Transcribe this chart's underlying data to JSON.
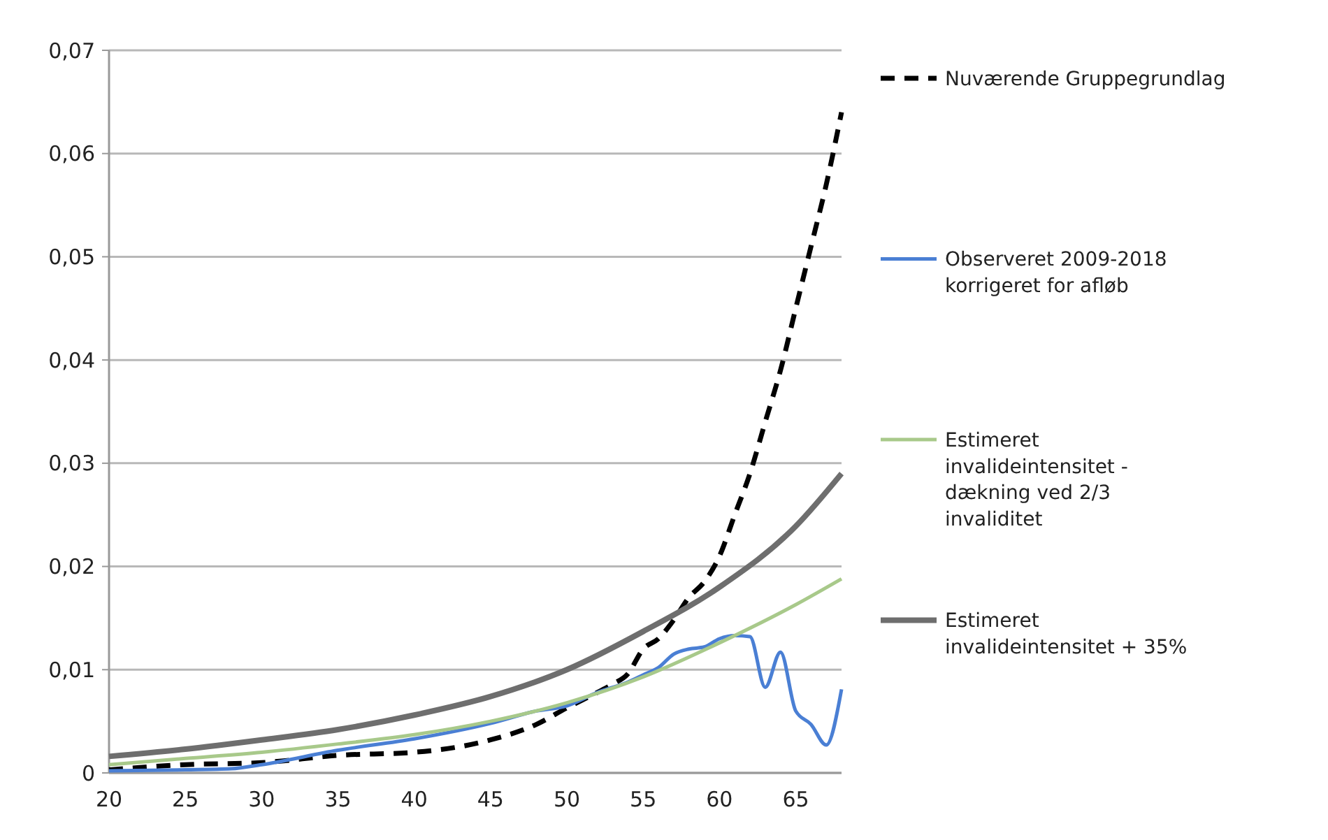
{
  "chart_data": {
    "type": "line",
    "xlim": [
      20,
      68
    ],
    "xticks": [
      20,
      25,
      30,
      35,
      40,
      45,
      50,
      55,
      60,
      65
    ],
    "ylim": [
      0,
      0.07
    ],
    "yticks": [
      0,
      {
        "value": 0.01,
        "label": "0,01"
      },
      {
        "value": 0.02,
        "label": "0,02"
      },
      {
        "value": 0.03,
        "label": "0,03"
      },
      {
        "value": 0.04,
        "label": "0,04"
      },
      {
        "value": 0.05,
        "label": "0,05"
      },
      {
        "value": 0.06,
        "label": "0,06"
      },
      {
        "value": 0.07,
        "label": "0,07"
      }
    ],
    "grid": "y",
    "legend": "right",
    "marker": "none",
    "series": [
      {
        "name": "Nuværende Gruppegrundlag",
        "color": "#000000",
        "line_style": "dashed",
        "x": [
          20,
          25,
          30,
          35,
          40,
          45,
          48,
          50,
          52,
          53,
          54,
          55,
          56,
          57,
          58,
          59,
          60,
          61,
          62,
          63,
          64,
          65,
          66,
          67,
          68
        ],
        "values": [
          0.0003,
          0.0008,
          0.001,
          0.0017,
          0.002,
          0.0032,
          0.0047,
          0.0063,
          0.0078,
          0.0086,
          0.0096,
          0.012,
          0.013,
          0.0148,
          0.017,
          0.0185,
          0.021,
          0.025,
          0.029,
          0.034,
          0.039,
          0.045,
          0.051,
          0.057,
          0.064
        ]
      },
      {
        "name": "Observeret 2009-2018 korrigeret for afløb",
        "color": "#4a7fd4",
        "line_style": "solid",
        "x": [
          20,
          25,
          28,
          30,
          35,
          40,
          45,
          48,
          50,
          52,
          54,
          55,
          56,
          57,
          58,
          59,
          60,
          61,
          62,
          63,
          64,
          65,
          66,
          67,
          68
        ],
        "values": [
          0.0002,
          0.0003,
          0.0004,
          0.0008,
          0.0022,
          0.0033,
          0.0048,
          0.006,
          0.0065,
          0.0078,
          0.0088,
          0.0095,
          0.0102,
          0.0115,
          0.012,
          0.0122,
          0.013,
          0.0133,
          0.0132,
          0.0083,
          0.0117,
          0.006,
          0.0047,
          0.0027,
          0.0081
        ]
      },
      {
        "name": "Estimeret invalideintensitet - dækning ved 2/3 invaliditet",
        "color": "#a8c98a",
        "line_style": "solid",
        "x": [
          20,
          25,
          30,
          35,
          40,
          45,
          50,
          55,
          60,
          65,
          68
        ],
        "values": [
          0.0008,
          0.0014,
          0.002,
          0.0028,
          0.0037,
          0.005,
          0.0068,
          0.0093,
          0.0126,
          0.0163,
          0.0188
        ]
      },
      {
        "name": "Estimeret invalideintensitet + 35%",
        "color": "#6e6e6e",
        "line_style": "solid",
        "x": [
          20,
          25,
          30,
          35,
          40,
          45,
          50,
          55,
          60,
          65,
          68
        ],
        "values": [
          0.0016,
          0.0023,
          0.0032,
          0.0042,
          0.0056,
          0.0074,
          0.01,
          0.0137,
          0.018,
          0.0239,
          0.029
        ]
      }
    ]
  }
}
